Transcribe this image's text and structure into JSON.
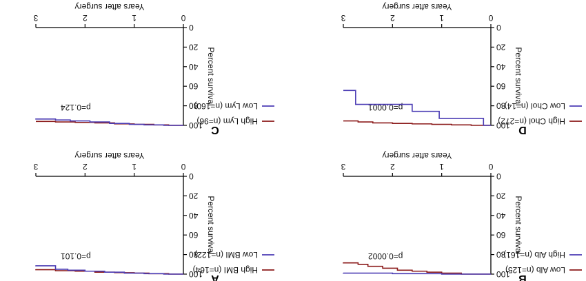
{
  "chart_data": [
    {
      "id": "C",
      "type": "line",
      "panel_label": "C",
      "title": "",
      "xlabel": "Years after surgery",
      "ylabel": "Percent survival",
      "xlim": [
        0,
        3
      ],
      "ylim": [
        0,
        100
      ],
      "xticks": [
        "0",
        "1",
        "2",
        "3"
      ],
      "yticks": [
        "0",
        "20",
        "40",
        "60",
        "80",
        "100"
      ],
      "pvalue": "p=0.124",
      "legend_position": "right",
      "series": [
        {
          "name": "High Lym (n=96)",
          "color": "#8b1a1a",
          "x": [
            0,
            0.3,
            0.6,
            1.0,
            1.4,
            1.8,
            2.2,
            2.6,
            3.0
          ],
          "y": [
            100,
            99.5,
            99,
            98.5,
            97.5,
            97,
            96.5,
            96,
            96
          ]
        },
        {
          "name": "Low Lym (n=160)",
          "color": "#4b3cb4",
          "x": [
            0,
            0.4,
            0.8,
            1.1,
            1.5,
            1.9,
            2.3,
            2.6,
            3.0
          ],
          "y": [
            100,
            99.5,
            99,
            98,
            96.5,
            95.5,
            94.5,
            93.5,
            93
          ]
        }
      ]
    },
    {
      "id": "D",
      "type": "line",
      "panel_label": "D",
      "title": "",
      "xlabel": "Years after surgery",
      "ylabel": "Percent survival",
      "xlim": [
        0,
        3
      ],
      "ylim": [
        0,
        100
      ],
      "xticks": [
        "0",
        "1",
        "2",
        "3"
      ],
      "yticks": [
        "0",
        "20",
        "40",
        "60",
        "80",
        "100"
      ],
      "pvalue": "p=0.0001",
      "legend_position": "right",
      "series": [
        {
          "name": "High Chol (n=272)",
          "color": "#8b1a1a",
          "x": [
            0,
            0.4,
            0.8,
            1.2,
            1.6,
            2.0,
            2.4,
            2.7,
            3.0
          ],
          "y": [
            100,
            99.5,
            99,
            98.5,
            98,
            97.5,
            96.5,
            95.5,
            95.5
          ]
        },
        {
          "name": "Low Chol (n=14)",
          "color": "#4b3cb4",
          "x": [
            0,
            0.15,
            1.05,
            1.6,
            2.75,
            3.0
          ],
          "y": [
            100,
            92.9,
            85.7,
            78.6,
            64.3,
            64.3
          ]
        }
      ]
    },
    {
      "id": "A",
      "type": "line",
      "panel_label": "A",
      "title": "",
      "xlabel": "Years after surgery",
      "ylabel": "Percent survival",
      "xlim": [
        0,
        3
      ],
      "ylim": [
        0,
        100
      ],
      "xticks": [
        "0",
        "1",
        "2",
        "3"
      ],
      "yticks": [
        "0",
        "20",
        "40",
        "60",
        "80",
        "100"
      ],
      "pvalue": "p=0.101",
      "legend_position": "right",
      "series": [
        {
          "name": "High BMI (n=164)",
          "color": "#8b1a1a",
          "x": [
            0,
            0.3,
            0.7,
            1.0,
            1.4,
            1.8,
            2.2,
            2.6,
            3.0
          ],
          "y": [
            100,
            99.5,
            99,
            98.5,
            98,
            97,
            96.5,
            95.5,
            95
          ]
        },
        {
          "name": "Low BMI (n=122)",
          "color": "#4b3cb4",
          "x": [
            0,
            0.4,
            0.8,
            1.2,
            1.6,
            2.0,
            2.35,
            2.6,
            3.0
          ],
          "y": [
            100,
            99.5,
            99,
            98,
            97,
            96,
            95,
            91.5,
            91
          ]
        }
      ]
    },
    {
      "id": "B",
      "type": "line",
      "panel_label": "B",
      "title": "",
      "xlabel": "Years after surgery",
      "ylabel": "Percent survival",
      "xlim": [
        0,
        3
      ],
      "ylim": [
        0,
        100
      ],
      "xticks": [
        "0",
        "1",
        "2",
        "3"
      ],
      "yticks": [
        "0",
        "20",
        "40",
        "60",
        "80",
        "100"
      ],
      "pvalue": "p=0.0002",
      "legend_position": "right",
      "series": [
        {
          "name": "Low Alb (n=125)",
          "color": "#8b1a1a",
          "x": [
            0,
            0.6,
            1.0,
            1.3,
            1.6,
            1.9,
            2.2,
            2.5,
            2.7,
            3.0
          ],
          "y": [
            100,
            99,
            98,
            97,
            96,
            94,
            92,
            90,
            88.5,
            88
          ]
        },
        {
          "name": "High Alb (n=161)",
          "color": "#4b3cb4",
          "x": [
            0,
            1.0,
            2.0,
            3.0
          ],
          "y": [
            100,
            99.5,
            99,
            98.8
          ]
        }
      ]
    }
  ]
}
